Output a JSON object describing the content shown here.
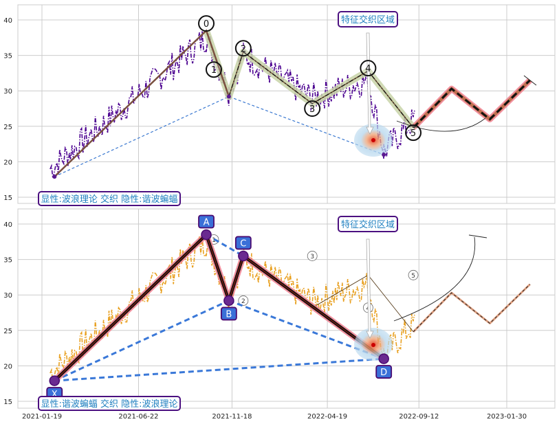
{
  "chart_data": [
    {
      "type": "line",
      "panel": "top",
      "ylim": [
        14,
        42
      ],
      "yticks": [
        15,
        20,
        25,
        30,
        35,
        40
      ],
      "grid": true,
      "legend_text": "显性:波浪理论 交织 隐性:谐波蝙蝠",
      "annotation": "特征交织区域",
      "wave_labels": [
        {
          "label": "0",
          "date": "2021-10-08",
          "value": 39.5
        },
        {
          "label": "1",
          "date": "2021-10-20",
          "value": 33.0
        },
        {
          "label": "2",
          "date": "2021-12-06",
          "value": 36.0
        },
        {
          "label": "3",
          "date": "2022-03-26",
          "value": 27.5
        },
        {
          "label": "4",
          "date": "2022-06-23",
          "value": 33.2
        },
        {
          "label": "5",
          "date": "2022-09-03",
          "value": 24.1
        }
      ],
      "wave_line": [
        {
          "date": "2021-02-08",
          "value": 17.9
        },
        {
          "date": "2021-10-08",
          "value": 38.5
        },
        {
          "date": "2021-11-13",
          "value": 29.2
        },
        {
          "date": "2021-12-06",
          "value": 35.5
        },
        {
          "date": "2022-03-26",
          "value": 28.2
        },
        {
          "date": "2022-06-23",
          "value": 32.8
        },
        {
          "date": "2022-09-03",
          "value": 24.8
        }
      ],
      "projection": [
        {
          "date": "2022-09-03",
          "value": 24.8
        },
        {
          "date": "2022-11-03",
          "value": 30.3
        },
        {
          "date": "2023-01-03",
          "value": 26.0
        },
        {
          "date": "2023-03-08",
          "value": 31.5
        }
      ],
      "bat_dashes": [
        {
          "date": "2021-02-08",
          "value": 17.9
        },
        {
          "date": "2021-11-13",
          "value": 29.2
        },
        {
          "date": "2022-07-18",
          "value": 21.0
        }
      ]
    },
    {
      "type": "line",
      "panel": "bottom",
      "ylim": [
        14,
        42
      ],
      "yticks": [
        15,
        20,
        25,
        30,
        35,
        40
      ],
      "xticks": [
        "2021-01-19",
        "2021-06-22",
        "2021-11-18",
        "2022-04-19",
        "2022-09-12",
        "2023-01-30"
      ],
      "grid": true,
      "legend_text": "显性:谐波蝙蝠 交织 隐性:波浪理论",
      "annotation": "特征交织区域",
      "harmonic_points": [
        {
          "label": "X",
          "date": "2021-02-08",
          "value": 17.9
        },
        {
          "label": "A",
          "date": "2021-10-08",
          "value": 38.5
        },
        {
          "label": "B",
          "date": "2021-11-13",
          "value": 29.2
        },
        {
          "label": "C",
          "date": "2021-12-06",
          "value": 35.5
        },
        {
          "label": "D",
          "date": "2022-07-18",
          "value": 21.0
        }
      ],
      "wave_labels": [
        "1",
        "2",
        "3",
        "4",
        "5"
      ]
    }
  ]
}
